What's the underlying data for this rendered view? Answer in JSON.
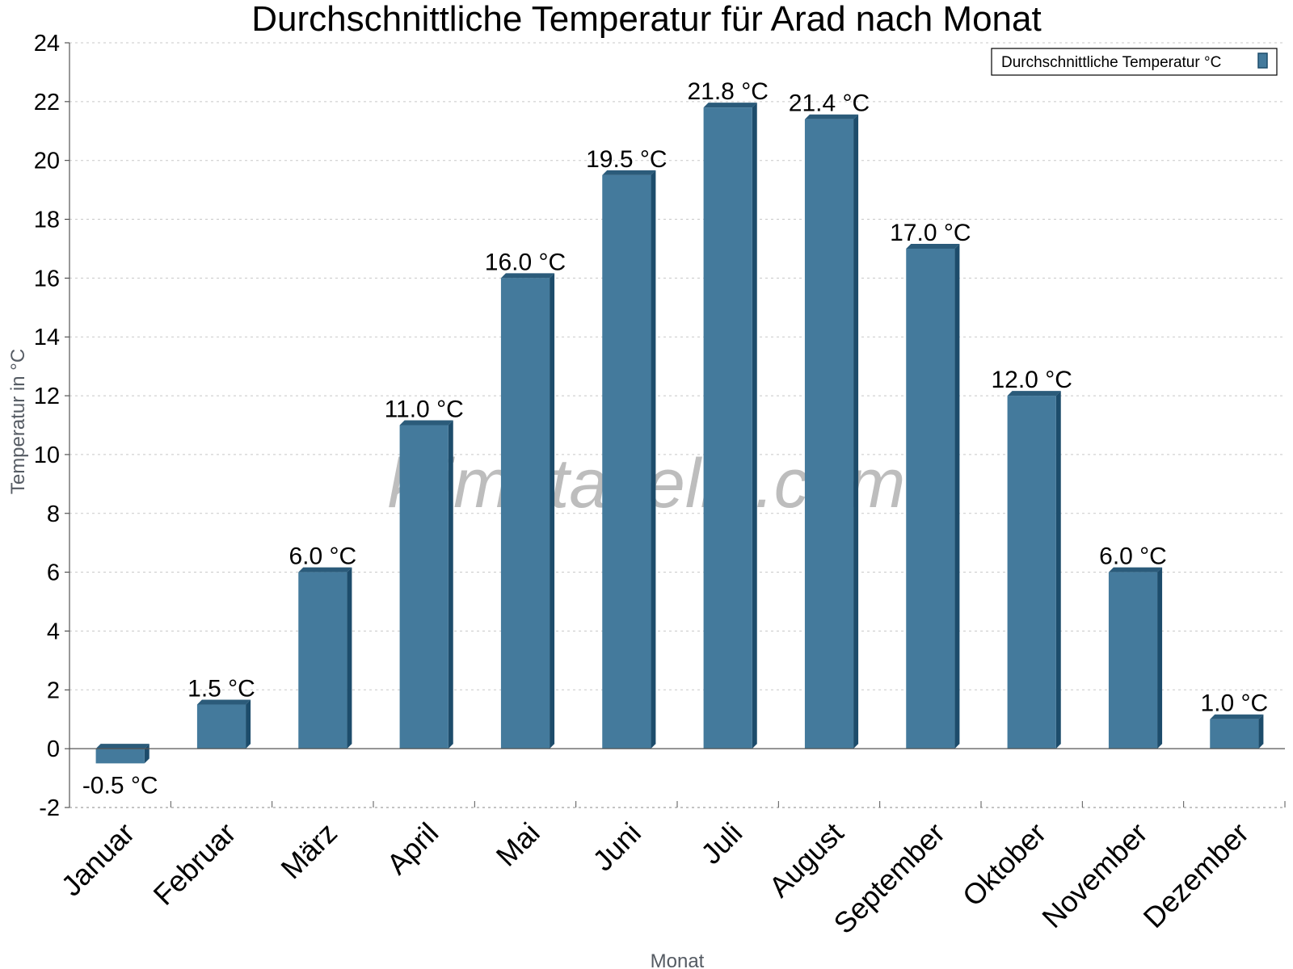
{
  "chart_data": {
    "type": "bar",
    "title": "Durchschnittliche Temperatur für Arad nach Monat",
    "xlabel": "Monat",
    "ylabel": "Temperatur in °C",
    "categories": [
      "Januar",
      "Februar",
      "März",
      "April",
      "Mai",
      "Juni",
      "Juli",
      "August",
      "September",
      "Oktober",
      "November",
      "Dezember"
    ],
    "series": [
      {
        "name": "Durchschnittliche Temperatur °C",
        "values": [
          -0.5,
          1.5,
          6.0,
          11.0,
          16.0,
          19.5,
          21.8,
          21.4,
          17.0,
          12.0,
          6.0,
          1.0
        ],
        "labels": [
          "-0.5 °C",
          "1.5 °C",
          "6.0 °C",
          "11.0 °C",
          "16.0 °C",
          "19.5 °C",
          "21.8 °C",
          "21.4 °C",
          "17.0 °C",
          "12.0 °C",
          "6.0 °C",
          "1.0 °C"
        ]
      }
    ],
    "ylim": [
      -2,
      24
    ],
    "yticks": [
      -2,
      0,
      2,
      4,
      6,
      8,
      10,
      12,
      14,
      16,
      18,
      20,
      22,
      24
    ],
    "grid": true,
    "legend_position": "top-right",
    "colors": {
      "bar": "#447a9c",
      "bar_top": "#2b5b7a",
      "bar_side": "#1d4c6b",
      "grid": "#c8c8c8"
    }
  },
  "watermark": "klimatabelle.com"
}
